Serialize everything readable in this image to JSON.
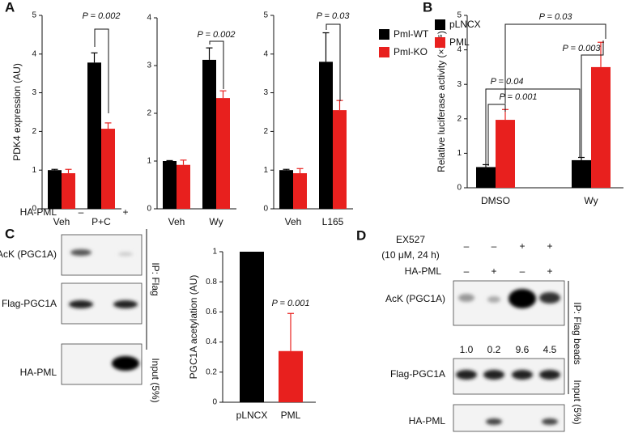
{
  "panel_labels": [
    "A",
    "B",
    "C",
    "D"
  ],
  "chart_data": [
    {
      "type": "bar",
      "ylabel": "PDK4 expression (AU)",
      "categories": [
        "Veh",
        "P+C"
      ],
      "series": [
        {
          "color": "#000000",
          "values": [
            1.0,
            3.78
          ],
          "errors": [
            0.02,
            0.25
          ]
        },
        {
          "color": "#e8201e",
          "values": [
            0.92,
            2.07
          ],
          "errors": [
            0.1,
            0.15
          ]
        }
      ],
      "ylim": [
        0,
        5
      ],
      "yticks": [
        0,
        1,
        2,
        3,
        4,
        5
      ],
      "annotations": [
        "P = 0.002"
      ]
    },
    {
      "type": "bar",
      "categories": [
        "Veh",
        "Wy"
      ],
      "series": [
        {
          "color": "#000000",
          "values": [
            1.0,
            3.12
          ],
          "errors": [
            0.01,
            0.25
          ]
        },
        {
          "color": "#e8201e",
          "values": [
            0.92,
            2.32
          ],
          "errors": [
            0.1,
            0.15
          ]
        }
      ],
      "ylim": [
        0,
        4
      ],
      "yticks": [
        0,
        1,
        2,
        3,
        4
      ],
      "annotations": [
        "P = 0.002"
      ]
    },
    {
      "type": "bar",
      "categories": [
        "Veh",
        "L165"
      ],
      "series": [
        {
          "name": "Pml-WT",
          "color": "#000000",
          "values": [
            1.0,
            3.8
          ],
          "errors": [
            0.02,
            0.75
          ]
        },
        {
          "name": "Pml-KO",
          "color": "#e8201e",
          "values": [
            0.92,
            2.55
          ],
          "errors": [
            0.12,
            0.25
          ]
        }
      ],
      "ylim": [
        0,
        5
      ],
      "yticks": [
        0,
        1,
        2,
        3,
        4,
        5
      ],
      "annotations": [
        "P = 0.03"
      ],
      "legend": "right"
    },
    {
      "type": "bar",
      "ylabel": "Relative luciferase activity (×10⁶)",
      "categories": [
        "DMSO",
        "Wy"
      ],
      "series": [
        {
          "name": "pLNCX",
          "color": "#000000",
          "values": [
            0.6,
            0.8
          ],
          "errors": [
            0.07,
            0.08
          ]
        },
        {
          "name": "PML",
          "color": "#e8201e",
          "values": [
            1.97,
            3.5
          ],
          "errors": [
            0.3,
            0.72
          ]
        }
      ],
      "ylim": [
        0,
        5
      ],
      "yticks": [
        0,
        1,
        2,
        3,
        4,
        5
      ],
      "annotations": [
        "P = 0.03",
        "P = 0.003",
        "P = 0.04",
        "P = 0.001"
      ],
      "legend": "upper left"
    },
    {
      "type": "bar",
      "ylabel": "PGC1A acetylation (AU)",
      "categories": [
        "pLNCX",
        "PML"
      ],
      "series": [
        {
          "colors": [
            "#000000",
            "#e8201e"
          ],
          "values": [
            1,
            0.34
          ],
          "errors": [
            null,
            0.25
          ]
        }
      ],
      "ylim": [
        0,
        1
      ],
      "yticks": [
        0,
        0.2,
        0.4,
        0.6,
        0.8,
        1
      ],
      "annotations": [
        "P = 0.001"
      ]
    }
  ],
  "blots": {
    "C": {
      "treatment": "HA-PML",
      "signs": [
        "–",
        "+"
      ],
      "rows": [
        "AcK (PGC1A)",
        "Flag-PGC1A",
        "HA-PML"
      ],
      "groups": [
        "IP: Flag",
        "Input (5%)"
      ]
    },
    "D": {
      "treatment": [
        "EX527",
        "(10 μM, 24 h)"
      ],
      "treatment_signs": [
        "–",
        "–",
        "+",
        "+"
      ],
      "construct": "HA-PML",
      "construct_signs": [
        "–",
        "+",
        "–",
        "+"
      ],
      "rows": [
        "AcK (PGC1A)",
        "Flag-PGC1A",
        "HA-PML"
      ],
      "quantification": [
        "1.0",
        "0.2",
        "9.6",
        "4.5"
      ],
      "groups": [
        "IP: Flag beads",
        "Input (5%)"
      ]
    }
  }
}
